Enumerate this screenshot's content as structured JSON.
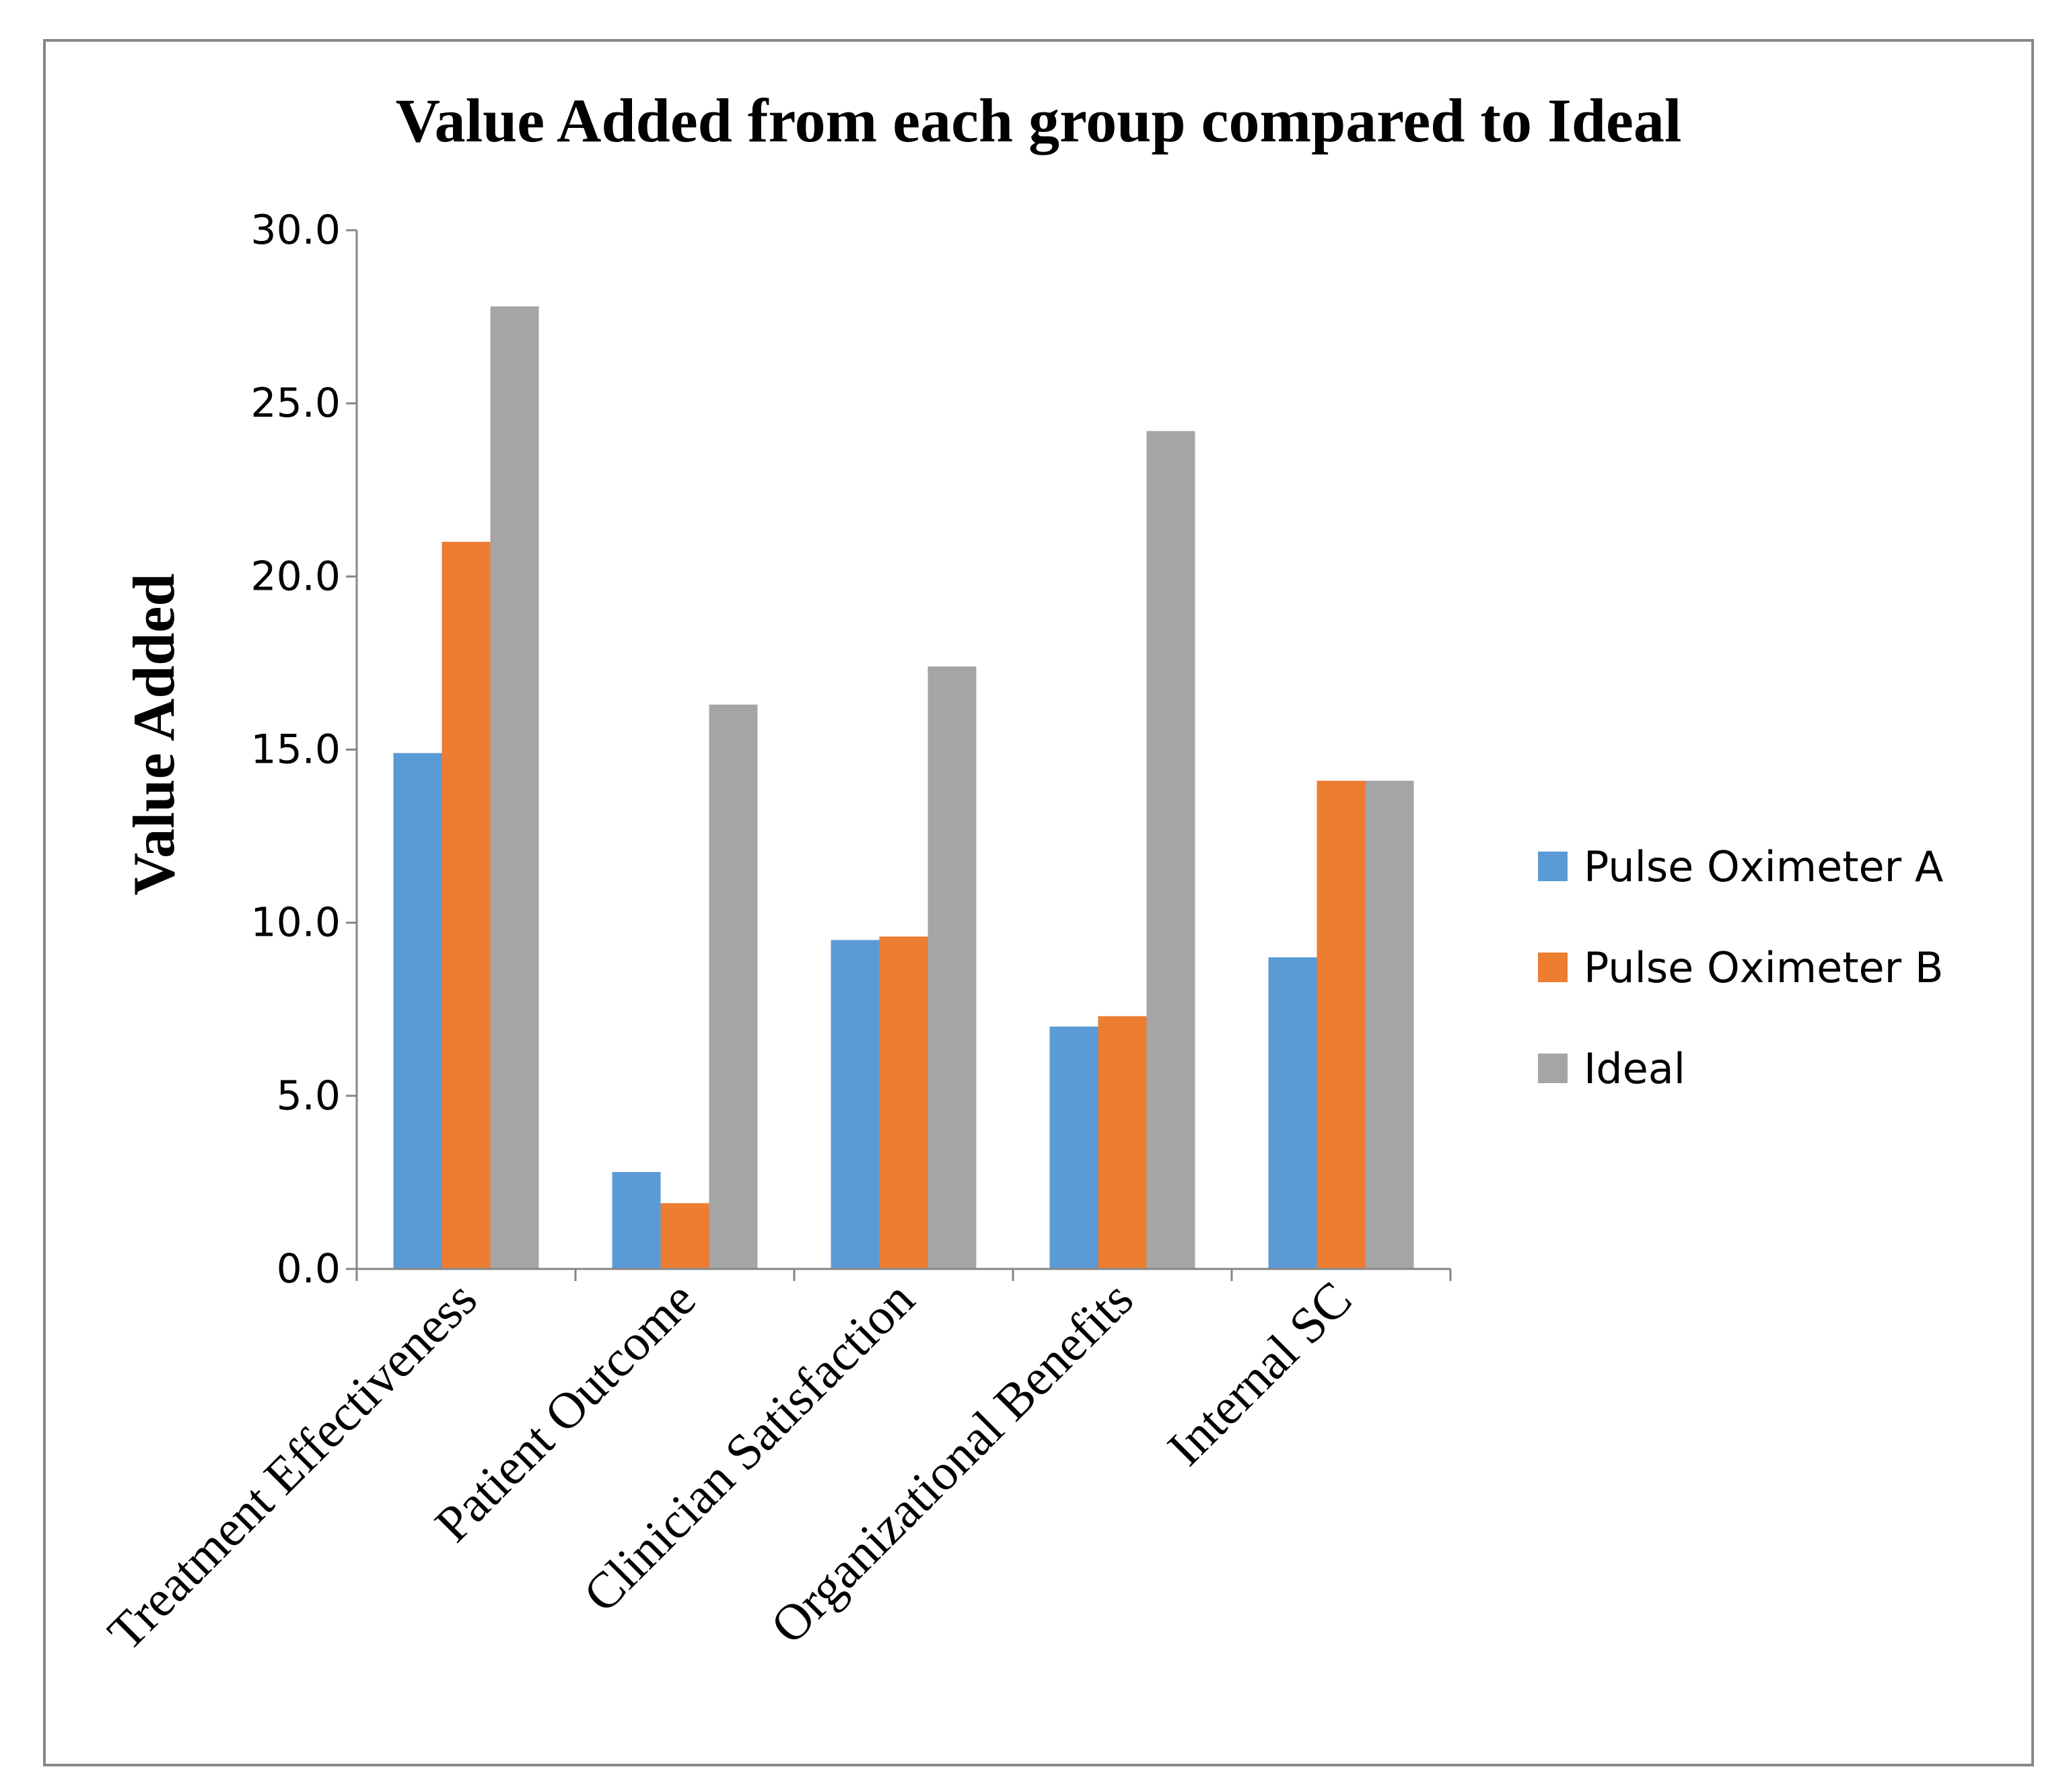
{
  "colors": {
    "series_a": "#5B9BD5",
    "series_b": "#ED7D31",
    "series_c": "#A5A5A5",
    "axis": "#868686",
    "frame": "#888888",
    "text": "#000000"
  },
  "chart_data": {
    "type": "bar",
    "title": "Value Added from each group compared to Ideal",
    "xlabel": "",
    "ylabel": "Value Added",
    "ylim": [
      0,
      30
    ],
    "yticks": [
      0,
      5,
      10,
      15,
      20,
      25,
      30
    ],
    "ytick_labels": [
      "0.0",
      "5.0",
      "10.0",
      "15.0",
      "20.0",
      "25.0",
      "30.0"
    ],
    "grid": false,
    "legend_position": "right",
    "categories": [
      "Treatment Effectiveness",
      "Patient Outcome",
      "Clinician Satisfaction",
      "Organizational Benefits",
      "Internal SC"
    ],
    "series": [
      {
        "name": "Pulse Oximeter A",
        "color": "#5B9BD5",
        "values": [
          14.9,
          2.8,
          9.5,
          7.0,
          9.0
        ]
      },
      {
        "name": "Pulse Oximeter B",
        "color": "#ED7D31",
        "values": [
          21.0,
          1.9,
          9.6,
          7.3,
          14.1
        ]
      },
      {
        "name": "Ideal",
        "color": "#A5A5A5",
        "values": [
          27.8,
          16.3,
          17.4,
          24.2,
          14.1
        ]
      }
    ]
  }
}
